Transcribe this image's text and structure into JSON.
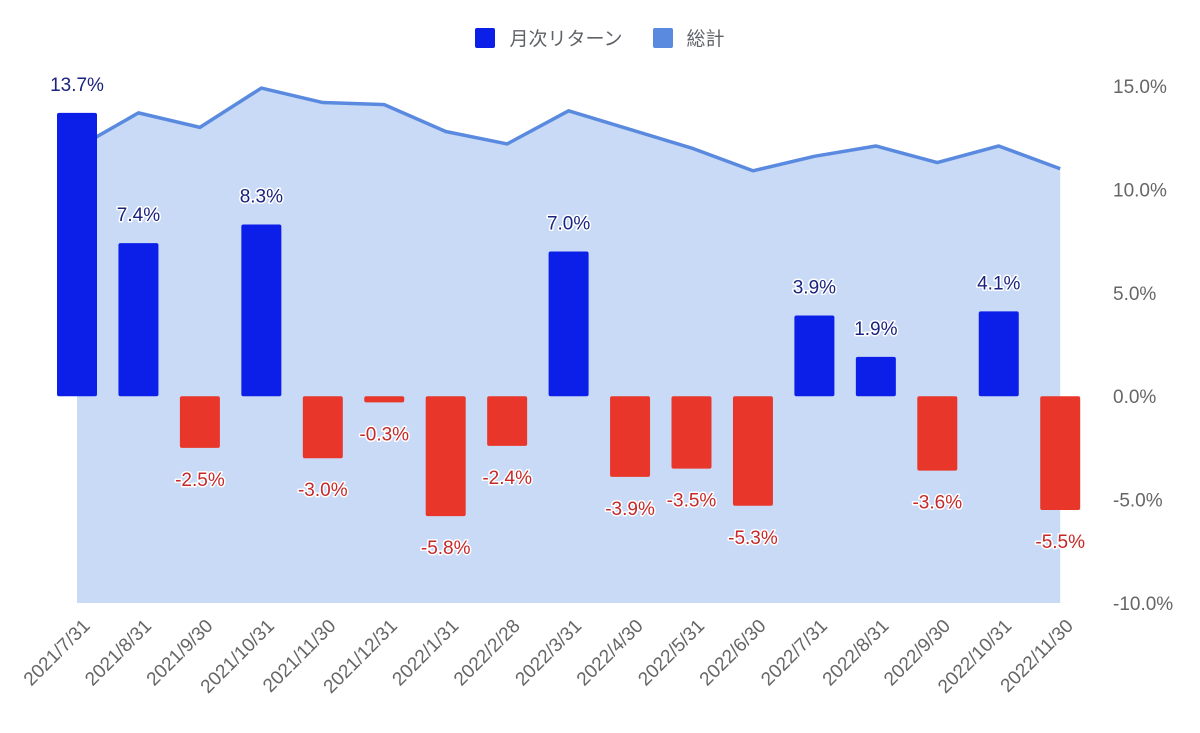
{
  "chart_data": {
    "type": "bar",
    "title": "",
    "xlabel": "",
    "ylabel": "",
    "ylim": [
      -10,
      15
    ],
    "y_ticks": [
      "15.0%",
      "10.0%",
      "5.0%",
      "0.0%",
      "-5.0%",
      "-10.0%"
    ],
    "y_tick_values": [
      15,
      10,
      5,
      0,
      -5,
      -10
    ],
    "y_axis_position": "right",
    "grid": false,
    "legend_position": "top-center",
    "categories": [
      "2021/7/31",
      "2021/8/31",
      "2021/9/30",
      "2021/10/31",
      "2021/11/30",
      "2021/12/31",
      "2022/1/31",
      "2022/2/28",
      "2022/3/31",
      "2022/4/30",
      "2022/5/31",
      "2022/6/30",
      "2022/7/31",
      "2022/8/31",
      "2022/9/30",
      "2022/10/31",
      "2022/11/30"
    ],
    "series": [
      {
        "name": "月次リターン",
        "type": "bar",
        "color": "#0b1fe8",
        "negative_color": "#e8372a",
        "label_color_positive": "#1a237e",
        "label_color_negative": "#c62828",
        "values": [
          13.7,
          7.4,
          -2.5,
          8.3,
          -3.0,
          -0.3,
          -5.8,
          -2.4,
          7.0,
          -3.9,
          -3.5,
          -5.3,
          3.9,
          1.9,
          -3.6,
          4.1,
          -5.5
        ],
        "labels": [
          "13.7%",
          "7.4%",
          "-2.5%",
          "8.3%",
          "-3.0%",
          "-0.3%",
          "-5.8%",
          "-2.4%",
          "7.0%",
          "-3.9%",
          "-3.5%",
          "-5.3%",
          "3.9%",
          "1.9%",
          "-3.6%",
          "4.1%",
          "-5.5%"
        ]
      },
      {
        "name": "総計",
        "type": "area",
        "color": "#5a8ae0",
        "fill_color": "#c9daf6",
        "values": [
          12.0,
          13.7,
          13.0,
          14.9,
          14.2,
          14.1,
          12.8,
          12.2,
          13.8,
          12.9,
          12.0,
          10.9,
          11.6,
          12.1,
          11.3,
          12.1,
          11.0
        ]
      }
    ]
  },
  "legend": {
    "items": [
      {
        "label": "月次リターン",
        "color": "#0b1fe8"
      },
      {
        "label": "総計",
        "color": "#5a8ae0"
      }
    ]
  }
}
